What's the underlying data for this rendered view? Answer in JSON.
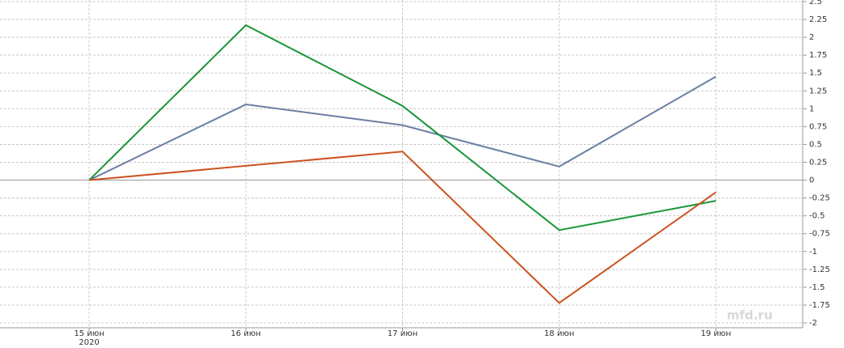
{
  "chart_data": {
    "type": "line",
    "categories": [
      "15 июн",
      "16 июн",
      "17 июн",
      "18 июн",
      "19 июн"
    ],
    "year_label": "2020",
    "series": [
      {
        "color": "#6b7fa3",
        "values": [
          0,
          1.06,
          0.77,
          0.19,
          1.45
        ]
      },
      {
        "color": "#1a9638",
        "values": [
          0,
          2.17,
          1.04,
          -0.7,
          -0.29
        ]
      },
      {
        "color": "#cc5220",
        "values": [
          0,
          0.2,
          0.4,
          -1.72,
          -0.17
        ]
      }
    ],
    "ylim": [
      -2,
      2.5
    ],
    "yticks": [
      -2,
      -1.75,
      -1.5,
      -1.25,
      -1,
      -0.75,
      -0.5,
      -0.25,
      0,
      0.25,
      0.5,
      0.75,
      1,
      1.25,
      1.5,
      1.75,
      2,
      2.25,
      2.5
    ],
    "grid": true,
    "watermark": "mfd.ru"
  }
}
